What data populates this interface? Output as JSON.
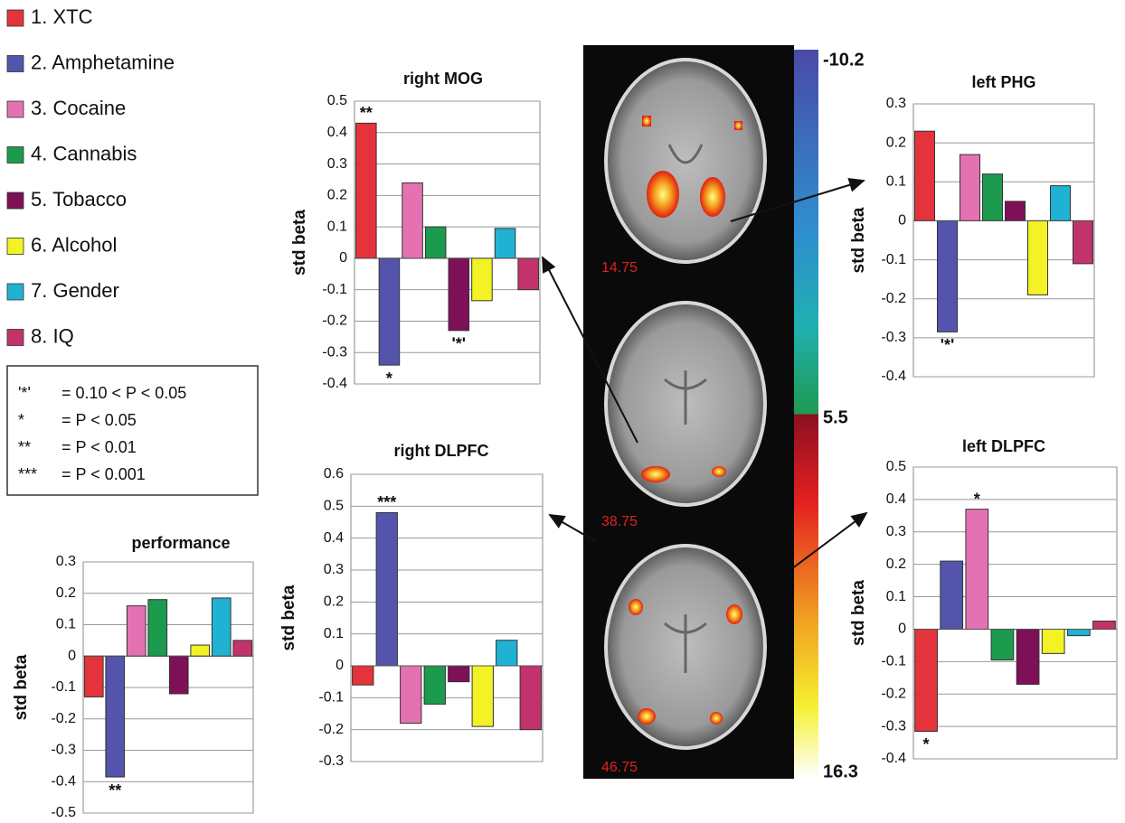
{
  "legend": [
    {
      "name": "1. XTC",
      "color": "#e5333b"
    },
    {
      "name": "2. Amphetamine",
      "color": "#5454ac"
    },
    {
      "name": "3. Cocaine",
      "color": "#e472b2"
    },
    {
      "name": "4. Cannabis",
      "color": "#1c9a4e"
    },
    {
      "name": "5. Tobacco",
      "color": "#7e1058"
    },
    {
      "name": "6. Alcohol",
      "color": "#f2f224"
    },
    {
      "name": "7. Gender",
      "color": "#1fb2d2"
    },
    {
      "name": "8. IQ",
      "color": "#c2336c"
    }
  ],
  "key": {
    "rows": [
      {
        "symbol": "'*'",
        "text": "= 0.10 < P < 0.05"
      },
      {
        "symbol": "*",
        "text": "= P < 0.05"
      },
      {
        "symbol": "**",
        "text": "= P < 0.01"
      },
      {
        "symbol": "***",
        "text": "= P < 0.001"
      }
    ]
  },
  "colorbar": {
    "top": -10.2,
    "middle": 5.5,
    "bottom": 16.3
  },
  "slices": [
    14.75,
    38.75,
    46.75
  ],
  "chart_data": [
    {
      "type": "bar",
      "title": "right MOG",
      "ylabel": "std beta",
      "values": [
        0.43,
        -0.34,
        0.24,
        0.1,
        -0.23,
        -0.135,
        0.095,
        -0.1
      ],
      "significance": [
        "**",
        "*",
        null,
        null,
        "'*'",
        null,
        null,
        null
      ],
      "ylim": [
        -0.4,
        0.5
      ],
      "yticks": [
        -0.4,
        -0.3,
        -0.2,
        -0.1,
        0,
        0.1,
        0.2,
        0.3,
        0.4,
        0.5
      ],
      "grid": true
    },
    {
      "type": "bar",
      "title": "left PHG",
      "ylabel": "std beta",
      "values": [
        0.23,
        -0.285,
        0.17,
        0.12,
        0.05,
        -0.19,
        0.09,
        -0.11
      ],
      "significance": [
        null,
        "'*'",
        null,
        null,
        null,
        null,
        null,
        null
      ],
      "ylim": [
        -0.4,
        0.3
      ],
      "yticks": [
        -0.4,
        -0.3,
        -0.2,
        -0.1,
        0,
        0.1,
        0.2,
        0.3
      ],
      "grid": true
    },
    {
      "type": "bar",
      "title": "performance",
      "ylabel": "std beta",
      "values": [
        -0.13,
        -0.385,
        0.16,
        0.18,
        -0.12,
        0.035,
        0.185,
        0.05
      ],
      "significance": [
        null,
        "**",
        null,
        null,
        null,
        null,
        null,
        null
      ],
      "ylim": [
        -0.5,
        0.3
      ],
      "yticks": [
        -0.5,
        -0.4,
        -0.3,
        -0.2,
        -0.1,
        0,
        0.1,
        0.2,
        0.3
      ],
      "grid": true
    },
    {
      "type": "bar",
      "title": "right DLPFC",
      "ylabel": "std beta",
      "values": [
        -0.06,
        0.48,
        -0.18,
        -0.12,
        -0.05,
        -0.19,
        0.08,
        -0.2
      ],
      "significance": [
        null,
        "***",
        null,
        null,
        null,
        null,
        null,
        null
      ],
      "ylim": [
        -0.3,
        0.6
      ],
      "yticks": [
        -0.3,
        -0.2,
        -0.1,
        0,
        0.1,
        0.2,
        0.3,
        0.4,
        0.5,
        0.6
      ],
      "grid": true
    },
    {
      "type": "bar",
      "title": "left DLPFC",
      "ylabel": "std beta",
      "values": [
        -0.315,
        0.21,
        0.37,
        -0.095,
        -0.17,
        -0.075,
        -0.02,
        0.025
      ],
      "significance": [
        "*",
        null,
        "*",
        null,
        null,
        null,
        null,
        null
      ],
      "ylim": [
        -0.4,
        0.5
      ],
      "yticks": [
        -0.4,
        -0.3,
        -0.2,
        -0.1,
        0,
        0.1,
        0.2,
        0.3,
        0.4,
        0.5
      ],
      "grid": true
    }
  ]
}
